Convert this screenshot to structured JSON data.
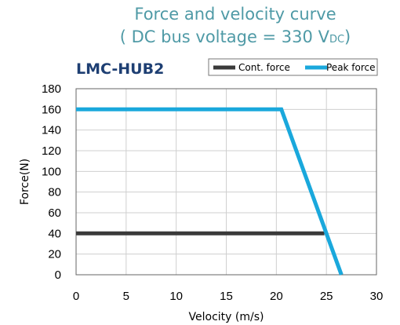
{
  "chart_data": {
    "type": "line",
    "title_line1": "Force and velocity curve",
    "title_line2_prefix": "( DC bus voltage = 330 V",
    "title_line2_sub": "DC",
    "title_line2_suffix": ")",
    "subtitle": "LMC-HUB2",
    "xlabel": "Velocity (m/s)",
    "ylabel": "Force(N)",
    "xlim": [
      0,
      30
    ],
    "ylim": [
      0,
      180
    ],
    "xticks": [
      0,
      5,
      10,
      15,
      20,
      25,
      30
    ],
    "yticks": [
      0,
      20,
      40,
      60,
      80,
      100,
      120,
      140,
      160,
      180
    ],
    "grid": true,
    "legend_position": "top-right",
    "series": [
      {
        "name": "Cont. force",
        "color": "#3a3a3a",
        "x": [
          0,
          24.8
        ],
        "y": [
          40,
          40
        ]
      },
      {
        "name": "Peak force",
        "color": "#1aa8dc",
        "x": [
          0,
          20.5,
          26.5
        ],
        "y": [
          160,
          160,
          0
        ]
      }
    ]
  }
}
